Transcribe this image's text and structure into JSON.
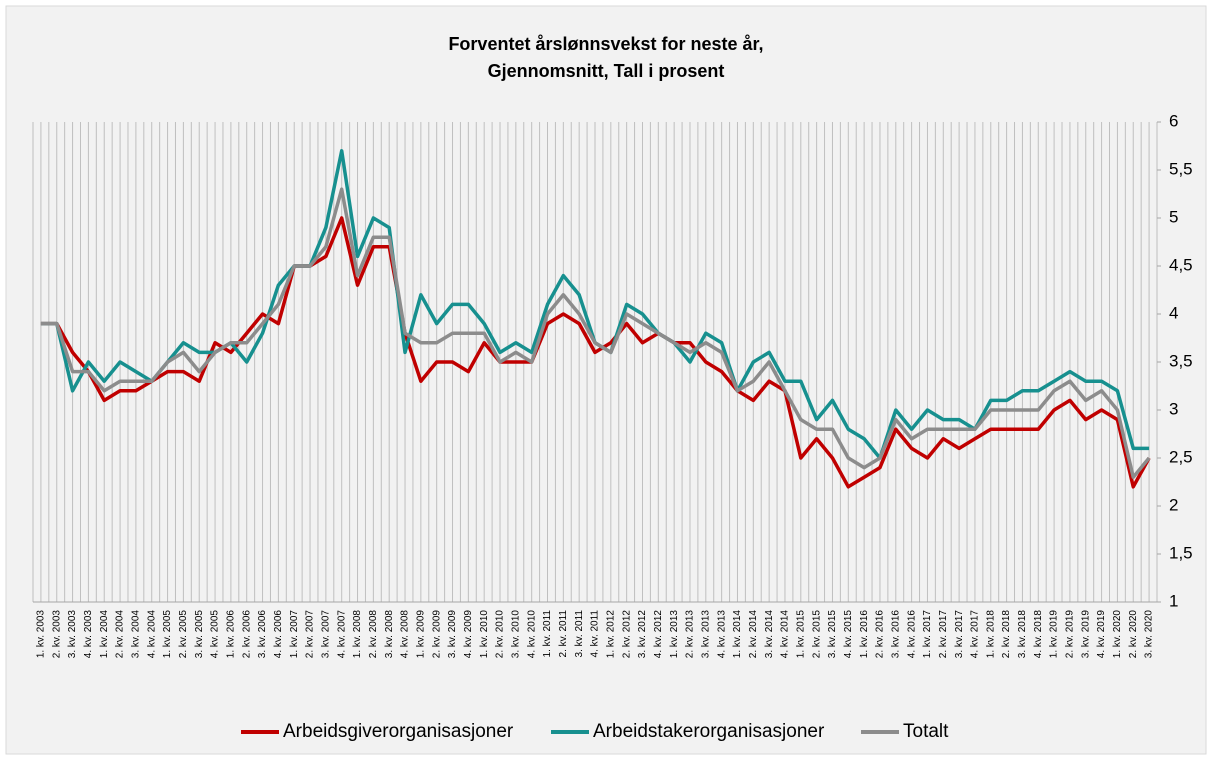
{
  "chart_data": {
    "type": "line",
    "title": "Forventet årslønnsvekst for neste år,",
    "subtitle": "Gjennomsnitt, Tall i prosent",
    "categories": [
      "1. kv. 2003",
      "2. kv. 2003",
      "3. kv. 2003",
      "4. kv. 2003",
      "1. kv. 2004",
      "2. kv. 2004",
      "3. kv. 2004",
      "4. kv. 2004",
      "1. kv. 2005",
      "2. kv. 2005",
      "3. kv. 2005",
      "4. kv. 2005",
      "1. kv. 2006",
      "2. kv. 2006",
      "3. kv. 2006",
      "4. kv. 2006",
      "1. kv. 2007",
      "2. kv. 2007",
      "3. kv. 2007",
      "4. kv. 2007",
      "1. kv. 2008",
      "2. kv. 2008",
      "3. kv. 2008",
      "4. kv. 2008",
      "1. kv. 2009",
      "2. kv. 2009",
      "3. kv. 2009",
      "4. kv. 2009",
      "1. kv. 2010",
      "2. kv. 2010",
      "3. kv. 2010",
      "4. kv. 2010",
      "1. kv. 2011",
      "2. kv. 2011",
      "3. kv. 2011",
      "4. kv. 2011",
      "1. kv. 2012",
      "2. kv. 2012",
      "3. kv. 2012",
      "4. kv. 2012",
      "1. kv. 2013",
      "2. kv. 2013",
      "3. kv. 2013",
      "4. kv. 2013",
      "1. kv. 2014",
      "2. kv. 2014",
      "3. kv. 2014",
      "4. kv. 2014",
      "1. kv. 2015",
      "2. kv. 2015",
      "3. kv. 2015",
      "4. kv. 2015",
      "1. kv. 2016",
      "2. kv. 2016",
      "3. kv. 2016",
      "4. kv. 2016",
      "1. kv. 2017",
      "2. kv. 2017",
      "3. kv. 2017",
      "4. kv. 2017",
      "1. kv. 2018",
      "2. kv. 2018",
      "3. kv. 2018",
      "4. kv. 2018",
      "1. kv. 2019",
      "2. kv. 2019",
      "3. kv. 2019",
      "4. kv. 2019",
      "1. kv. 2020",
      "2. kv. 2020",
      "3. kv. 2020"
    ],
    "series": [
      {
        "name": "Arbeidsgiverorganisasjoner",
        "color": "#c00000",
        "values": [
          3.9,
          3.9,
          3.6,
          3.4,
          3.1,
          3.2,
          3.2,
          3.3,
          3.4,
          3.4,
          3.3,
          3.7,
          3.6,
          3.8,
          4.0,
          3.9,
          4.5,
          4.5,
          4.6,
          5.0,
          4.3,
          4.7,
          4.7,
          3.8,
          3.3,
          3.5,
          3.5,
          3.4,
          3.7,
          3.5,
          3.5,
          3.5,
          3.9,
          4.0,
          3.9,
          3.6,
          3.7,
          3.9,
          3.7,
          3.8,
          3.7,
          3.7,
          3.5,
          3.4,
          3.2,
          3.1,
          3.3,
          3.2,
          2.5,
          2.7,
          2.5,
          2.2,
          2.3,
          2.4,
          2.8,
          2.6,
          2.5,
          2.7,
          2.6,
          2.7,
          2.8,
          2.8,
          2.8,
          2.8,
          3.0,
          3.1,
          2.9,
          3.0,
          2.9,
          2.2,
          2.5
        ]
      },
      {
        "name": "Arbeidstakerorganisasjoner",
        "color": "#17908f",
        "values": [
          3.9,
          3.9,
          3.2,
          3.5,
          3.3,
          3.5,
          3.4,
          3.3,
          3.5,
          3.7,
          3.6,
          3.6,
          3.7,
          3.5,
          3.8,
          4.3,
          4.5,
          4.5,
          4.9,
          5.7,
          4.6,
          5.0,
          4.9,
          3.6,
          4.2,
          3.9,
          4.1,
          4.1,
          3.9,
          3.6,
          3.7,
          3.6,
          4.1,
          4.4,
          4.2,
          3.7,
          3.6,
          4.1,
          4.0,
          3.8,
          3.7,
          3.5,
          3.8,
          3.7,
          3.2,
          3.5,
          3.6,
          3.3,
          3.3,
          2.9,
          3.1,
          2.8,
          2.7,
          2.5,
          3.0,
          2.8,
          3.0,
          2.9,
          2.9,
          2.8,
          3.1,
          3.1,
          3.2,
          3.2,
          3.3,
          3.4,
          3.3,
          3.3,
          3.2,
          2.6,
          2.6
        ]
      },
      {
        "name": "Totalt",
        "color": "#8c8c8c",
        "values": [
          3.9,
          3.9,
          3.4,
          3.4,
          3.2,
          3.3,
          3.3,
          3.3,
          3.5,
          3.6,
          3.4,
          3.6,
          3.7,
          3.7,
          3.9,
          4.1,
          4.5,
          4.5,
          4.7,
          5.3,
          4.4,
          4.8,
          4.8,
          3.8,
          3.7,
          3.7,
          3.8,
          3.8,
          3.8,
          3.5,
          3.6,
          3.5,
          4.0,
          4.2,
          4.0,
          3.7,
          3.6,
          4.0,
          3.9,
          3.8,
          3.7,
          3.6,
          3.7,
          3.6,
          3.2,
          3.3,
          3.5,
          3.2,
          2.9,
          2.8,
          2.8,
          2.5,
          2.4,
          2.5,
          2.9,
          2.7,
          2.8,
          2.8,
          2.8,
          2.8,
          3.0,
          3.0,
          3.0,
          3.0,
          3.2,
          3.3,
          3.1,
          3.2,
          3.0,
          2.3,
          2.5
        ]
      }
    ],
    "ylim": [
      1,
      6
    ],
    "yticks": [
      1,
      {
        "value": 1.5,
        "label": "1,5"
      },
      2,
      {
        "value": 2.5,
        "label": "2,5"
      },
      3,
      {
        "value": 3.5,
        "label": "3,5"
      },
      4,
      {
        "value": 4.5,
        "label": "4,5"
      },
      5,
      {
        "value": 5.5,
        "label": "5,5"
      },
      6
    ],
    "legend": "bottom"
  }
}
